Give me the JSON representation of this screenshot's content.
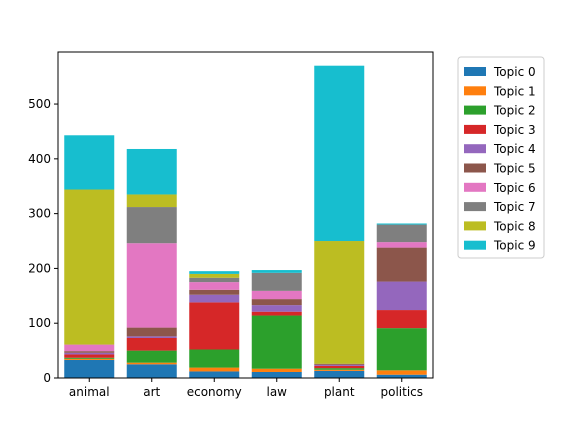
{
  "chart_data": {
    "type": "bar",
    "stacked": true,
    "categories": [
      "animal",
      "art",
      "economy",
      "law",
      "plant",
      "politics"
    ],
    "series": [
      {
        "name": "Topic 0",
        "color": "#1f77b4",
        "values": [
          33,
          25,
          12,
          11,
          13,
          6
        ]
      },
      {
        "name": "Topic 1",
        "color": "#ff7f0e",
        "values": [
          2,
          3,
          7,
          6,
          2,
          8
        ]
      },
      {
        "name": "Topic 2",
        "color": "#2ca02c",
        "values": [
          2,
          22,
          33,
          97,
          3,
          77
        ]
      },
      {
        "name": "Topic 3",
        "color": "#d62728",
        "values": [
          6,
          23,
          86,
          7,
          4,
          33
        ]
      },
      {
        "name": "Topic 4",
        "color": "#9467bd",
        "values": [
          3,
          3,
          14,
          12,
          2,
          52
        ]
      },
      {
        "name": "Topic 5",
        "color": "#8c564b",
        "values": [
          3,
          16,
          9,
          11,
          2,
          62
        ]
      },
      {
        "name": "Topic 6",
        "color": "#e377c2",
        "values": [
          12,
          154,
          14,
          15,
          0,
          10
        ]
      },
      {
        "name": "Topic 7",
        "color": "#7f7f7f",
        "values": [
          0,
          66,
          8,
          33,
          0,
          32
        ]
      },
      {
        "name": "Topic 8",
        "color": "#bcbd22",
        "values": [
          283,
          23,
          7,
          0,
          224,
          0
        ]
      },
      {
        "name": "Topic 9",
        "color": "#17becf",
        "values": [
          99,
          83,
          5,
          5,
          320,
          2
        ]
      }
    ],
    "title": "",
    "xlabel": "",
    "ylabel": "",
    "ylim": [
      0,
      595
    ],
    "yticks": [
      0,
      100,
      200,
      300,
      400,
      500
    ],
    "grid": false,
    "legend_position": "outside-right"
  }
}
